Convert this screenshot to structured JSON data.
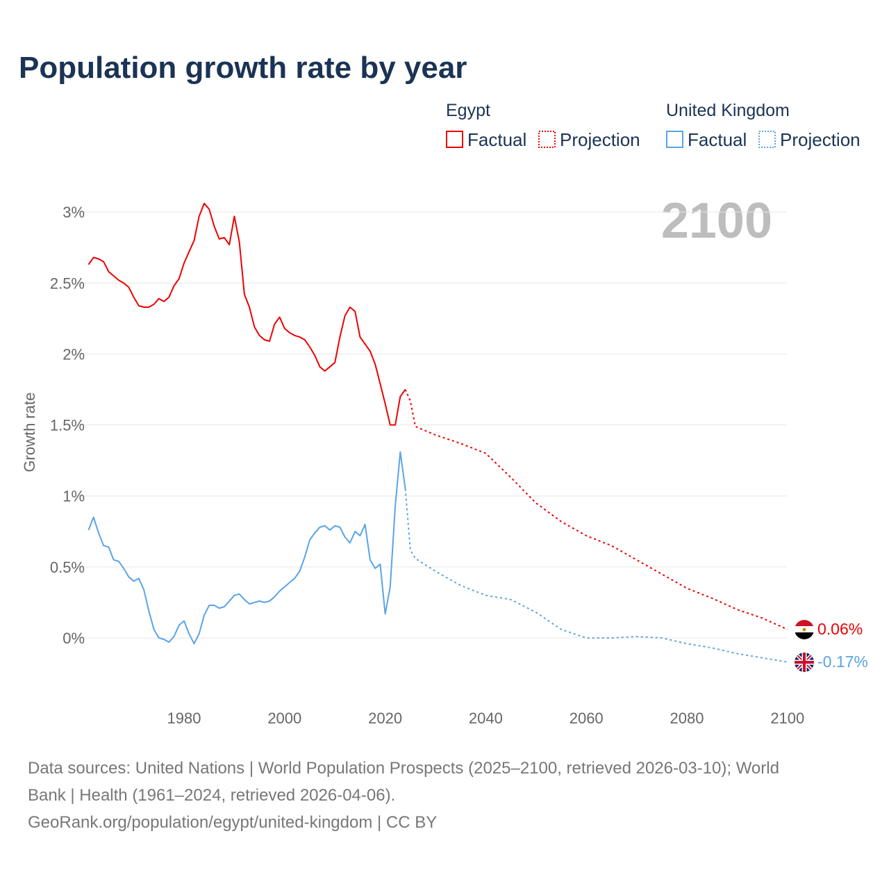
{
  "title": "Population growth rate by year",
  "legend": {
    "groups": [
      {
        "name": "Egypt",
        "factual": "Factual",
        "projection": "Projection",
        "color": "#ee0000"
      },
      {
        "name": "United Kingdom",
        "factual": "Factual",
        "projection": "Projection",
        "color": "#5aa3e8"
      }
    ]
  },
  "year_label": "2100",
  "end_labels": {
    "egypt": "0.06%",
    "uk": "-0.17%"
  },
  "footer": {
    "line1": "Data sources: United Nations | World Population Prospects (2025–2100, retrieved 2026-03-10); World",
    "line2": "Bank | Health (1961–2024, retrieved 2026-04-06).",
    "line3": "GeoRank.org/population/egypt/united-kingdom | CC BY"
  },
  "chart_data": {
    "type": "line",
    "title": "Population growth rate by year",
    "xlabel": "",
    "ylabel": "Growth rate",
    "xlim": [
      1961,
      2100
    ],
    "ylim": [
      -0.3,
      3.2
    ],
    "x_ticks": [
      1980,
      2000,
      2020,
      2040,
      2060,
      2080,
      2100
    ],
    "x_tick_labels": [
      "1980",
      "2000",
      "2020",
      "2040",
      "2060",
      "2080",
      "2100"
    ],
    "y_ticks": [
      0,
      0.5,
      1,
      1.5,
      2,
      2.5,
      3
    ],
    "y_tick_labels": [
      "0%",
      "0.5%",
      "1%",
      "1.5%",
      "2%",
      "2.5%",
      "3%"
    ],
    "grid": true,
    "legend_position": "top-right",
    "series": [
      {
        "name": "Egypt Factual",
        "color": "#ee0000",
        "dashed": false,
        "x": [
          1961,
          1962,
          1963,
          1964,
          1965,
          1966,
          1967,
          1968,
          1969,
          1970,
          1971,
          1972,
          1973,
          1974,
          1975,
          1976,
          1977,
          1978,
          1979,
          1980,
          1981,
          1982,
          1983,
          1984,
          1985,
          1986,
          1987,
          1988,
          1989,
          1990,
          1991,
          1992,
          1993,
          1994,
          1995,
          1996,
          1997,
          1998,
          1999,
          2000,
          2001,
          2002,
          2003,
          2004,
          2005,
          2006,
          2007,
          2008,
          2009,
          2010,
          2011,
          2012,
          2013,
          2014,
          2015,
          2016,
          2017,
          2018,
          2019,
          2020,
          2021,
          2022,
          2023,
          2024
        ],
        "y": [
          2.63,
          2.68,
          2.67,
          2.65,
          2.58,
          2.55,
          2.52,
          2.5,
          2.47,
          2.4,
          2.34,
          2.33,
          2.33,
          2.35,
          2.39,
          2.37,
          2.4,
          2.48,
          2.53,
          2.64,
          2.72,
          2.8,
          2.97,
          3.06,
          3.02,
          2.9,
          2.81,
          2.82,
          2.77,
          2.97,
          2.79,
          2.42,
          2.33,
          2.19,
          2.13,
          2.1,
          2.09,
          2.21,
          2.26,
          2.18,
          2.15,
          2.13,
          2.12,
          2.1,
          2.05,
          1.99,
          1.91,
          1.88,
          1.91,
          1.94,
          2.12,
          2.27,
          2.33,
          2.3,
          2.12,
          2.07,
          2.02,
          1.93,
          1.79,
          1.65,
          1.5,
          1.5,
          1.7,
          1.75
        ]
      },
      {
        "name": "Egypt Projection",
        "color": "#ee0000",
        "dashed": true,
        "x": [
          2024,
          2025,
          2026,
          2030,
          2035,
          2040,
          2045,
          2050,
          2055,
          2060,
          2065,
          2070,
          2075,
          2080,
          2085,
          2090,
          2095,
          2100
        ],
        "y": [
          1.75,
          1.67,
          1.49,
          1.43,
          1.37,
          1.3,
          1.13,
          0.95,
          0.82,
          0.72,
          0.65,
          0.55,
          0.45,
          0.35,
          0.28,
          0.2,
          0.14,
          0.06
        ]
      },
      {
        "name": "United Kingdom Factual",
        "color": "#5aa3e8",
        "dashed": false,
        "x": [
          1961,
          1962,
          1963,
          1964,
          1965,
          1966,
          1967,
          1968,
          1969,
          1970,
          1971,
          1972,
          1973,
          1974,
          1975,
          1976,
          1977,
          1978,
          1979,
          1980,
          1981,
          1982,
          1983,
          1984,
          1985,
          1986,
          1987,
          1988,
          1989,
          1990,
          1991,
          1992,
          1993,
          1994,
          1995,
          1996,
          1997,
          1998,
          1999,
          2000,
          2001,
          2002,
          2003,
          2004,
          2005,
          2006,
          2007,
          2008,
          2009,
          2010,
          2011,
          2012,
          2013,
          2014,
          2015,
          2016,
          2017,
          2018,
          2019,
          2020,
          2021,
          2022,
          2023,
          2024
        ],
        "y": [
          0.76,
          0.85,
          0.74,
          0.65,
          0.64,
          0.55,
          0.54,
          0.49,
          0.43,
          0.4,
          0.42,
          0.34,
          0.19,
          0.06,
          0.0,
          -0.01,
          -0.03,
          0.01,
          0.09,
          0.12,
          0.03,
          -0.04,
          0.03,
          0.16,
          0.23,
          0.23,
          0.21,
          0.22,
          0.26,
          0.3,
          0.31,
          0.27,
          0.24,
          0.25,
          0.26,
          0.25,
          0.26,
          0.29,
          0.33,
          0.36,
          0.39,
          0.42,
          0.47,
          0.57,
          0.69,
          0.74,
          0.78,
          0.79,
          0.76,
          0.79,
          0.78,
          0.71,
          0.67,
          0.75,
          0.72,
          0.8,
          0.55,
          0.49,
          0.52,
          0.17,
          0.36,
          0.93,
          1.31,
          1.05
        ]
      },
      {
        "name": "United Kingdom Projection",
        "color": "#5aa3e8",
        "dashed": true,
        "x": [
          2024,
          2025,
          2026,
          2030,
          2035,
          2040,
          2045,
          2050,
          2055,
          2060,
          2065,
          2070,
          2075,
          2080,
          2085,
          2090,
          2095,
          2100
        ],
        "y": [
          1.05,
          0.62,
          0.56,
          0.47,
          0.37,
          0.3,
          0.27,
          0.18,
          0.06,
          0.0,
          0.0,
          0.01,
          0.0,
          -0.04,
          -0.07,
          -0.11,
          -0.14,
          -0.17
        ]
      }
    ]
  }
}
